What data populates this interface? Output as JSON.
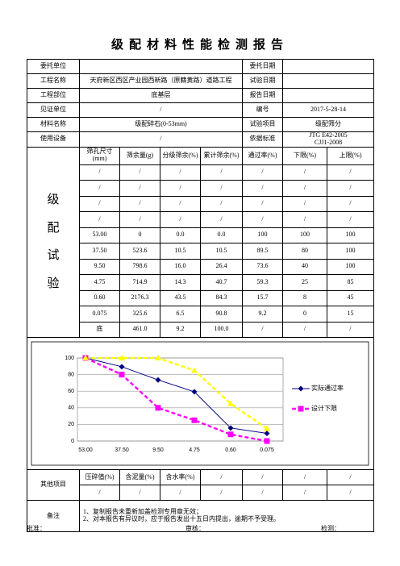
{
  "title": "级配材料性能检测报告",
  "info": {
    "rows": [
      {
        "label": "委托单位",
        "label2": "委托日期"
      },
      {
        "label": "工程名称",
        "value": "天府新区西区产业园西新路（原籍黄路）道路工程",
        "label2": "试验日期"
      },
      {
        "label": "工程部位",
        "value": "底基层",
        "label2": "报告日期"
      },
      {
        "label": "见证单位",
        "value": "/",
        "label2": "编号",
        "value2": [
          "2017-5-28-14"
        ]
      },
      {
        "label": "材料名称",
        "value": "级配碎石(0-53mm)",
        "label2": "试验项目",
        "value2": [
          "级配筛分"
        ]
      },
      {
        "label": "使用设备",
        "value": "/",
        "label2": "依据标准",
        "value2": [
          "JTG E42-2005",
          "CJJ1-2008"
        ]
      }
    ]
  },
  "gradation": {
    "label": "级配试验",
    "header": [
      "筛孔尺寸(mm)",
      "筛余量(g)",
      "分级筛余(%)",
      "累计筛余(%)",
      "通过率(%)",
      "下限(%)",
      "上限(%)"
    ],
    "rows": [
      [
        "/",
        "/",
        "/",
        "/",
        "/",
        "/",
        "/"
      ],
      [
        "/",
        "/",
        "/",
        "/",
        "/",
        "/",
        "/"
      ],
      [
        "/",
        "/",
        "/",
        "/",
        "/",
        "/",
        "/"
      ],
      [
        "/",
        "/",
        "/",
        "/",
        "/",
        "/",
        "/"
      ],
      [
        "53.00",
        "0",
        "0.0",
        "0.0",
        "100",
        "100",
        "100"
      ],
      [
        "37.50",
        "523.6",
        "10.5",
        "10.5",
        "89.5",
        "80",
        "100"
      ],
      [
        "9.50",
        "798.6",
        "16.0",
        "26.4",
        "73.6",
        "40",
        "100"
      ],
      [
        "4.75",
        "714.9",
        "14.3",
        "40.7",
        "59.3",
        "25",
        "85"
      ],
      [
        "0.60",
        "2176.3",
        "43.5",
        "84.3",
        "15.7",
        "8",
        "45"
      ],
      [
        "0.075",
        "325.6",
        "6.5",
        "90.8",
        "9.2",
        "0",
        "15"
      ],
      [
        "底",
        "461.0",
        "9.2",
        "100.0",
        "/",
        "/",
        "/"
      ]
    ]
  },
  "chart_data": {
    "type": "line",
    "categories": [
      "53.00",
      "37.50",
      "9.50",
      "4.75",
      "0.60",
      "0.075"
    ],
    "ylim": [
      0,
      100
    ],
    "yticks": [
      0,
      20,
      40,
      60,
      80,
      100
    ],
    "grid": true,
    "legend": "right",
    "series": [
      {
        "name": "实际通过率",
        "color": "#000080",
        "marker": "diamond",
        "dashed": false,
        "values": [
          100,
          89.5,
          73.6,
          59.3,
          15.7,
          9.2
        ]
      },
      {
        "name": "设计下限",
        "color": "#ff00ff",
        "marker": "square",
        "dashed": true,
        "values": [
          100,
          80,
          40,
          25,
          8,
          0
        ]
      },
      {
        "color": "#ffff00",
        "marker": "triangle",
        "dashed": true,
        "values": [
          100,
          100,
          100,
          85,
          45,
          15
        ]
      }
    ]
  },
  "other": {
    "label": "其他项目",
    "rows": [
      [
        "压碎值(%)",
        "含泥量(%)",
        "含水率(%)",
        "/",
        "/",
        "/",
        "/"
      ],
      [
        "/",
        "/",
        "/",
        "/",
        "/",
        "/",
        "/"
      ]
    ]
  },
  "remarks": {
    "label": "备注",
    "lines": [
      "1、复制报告未重新加盖检测专用章无效；",
      "2、对本报告有异议时，应于报告发出十五日内提出，逾期不予受理。"
    ]
  },
  "footer": [
    "批准：",
    "审核：",
    "检测："
  ]
}
